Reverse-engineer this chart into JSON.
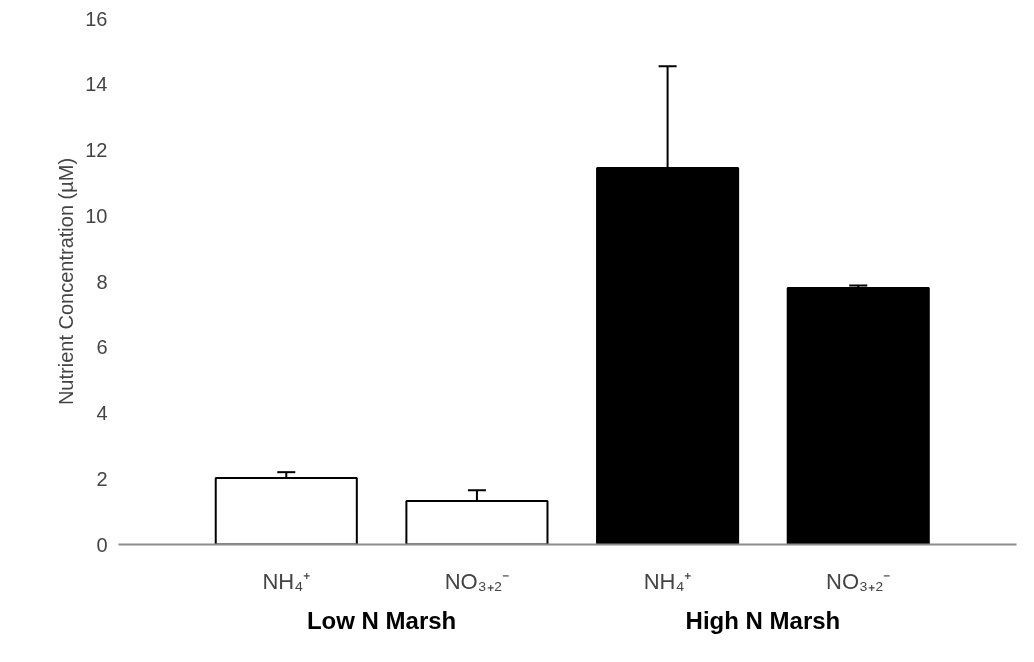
{
  "chart_data": {
    "type": "bar",
    "categories": [
      "NH₄⁺",
      "NO₃₊₂⁻",
      "NH₄⁺",
      "NO₃₊₂⁻"
    ],
    "values": [
      2.02,
      1.32,
      11.45,
      7.8
    ],
    "colors": [
      "#ffffff",
      "#ffffff",
      "#000000",
      "#000000"
    ],
    "errors": [
      [
        2.02,
        2.2
      ],
      [
        1.32,
        1.65
      ],
      [
        11.45,
        14.55
      ],
      [
        7.8,
        7.88
      ]
    ],
    "ylabel": "Nutrient Concentration (µM)",
    "ylim": [
      0,
      16
    ],
    "yticks": [
      0,
      2,
      4,
      6,
      8,
      10,
      12,
      14,
      16
    ],
    "annotations": [
      "Low N Marsh",
      "High N Marsh"
    ],
    "grid": false
  }
}
